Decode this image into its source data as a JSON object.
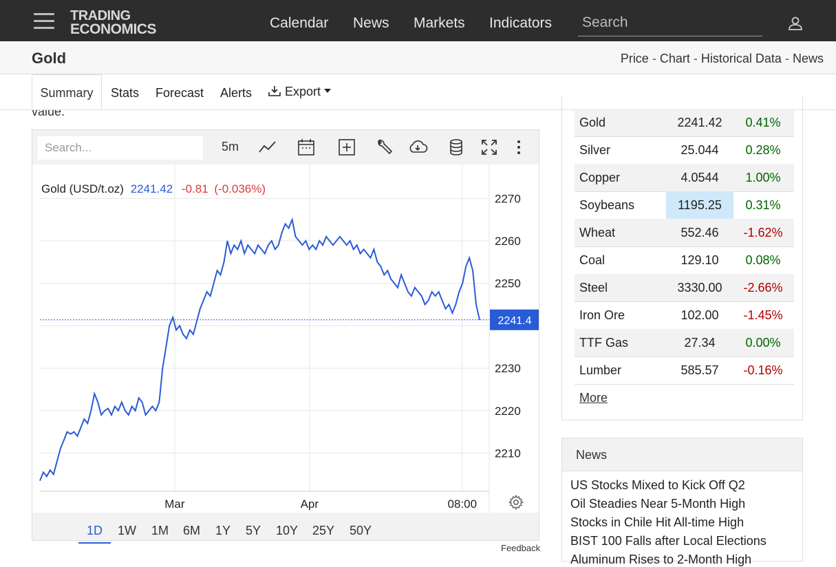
{
  "header": {
    "logo_line1": "TRADING",
    "logo_line2": "ECONOMICS",
    "nav": [
      "Calendar",
      "News",
      "Markets",
      "Indicators"
    ],
    "search_placeholder": "Search",
    "icons": {
      "menu": "hamburger-menu-icon",
      "user": "user-icon"
    }
  },
  "subheader": {
    "title": "Gold",
    "links": [
      "Price",
      "Chart",
      "Historical Data",
      "News"
    ],
    "separator": "-"
  },
  "tabs": [
    "Summary",
    "Stats",
    "Forecast",
    "Alerts",
    "Export"
  ],
  "tabs_active": "Summary",
  "partial_text": "value.",
  "chart_toolbar": {
    "search_placeholder": "Search...",
    "interval": "5m",
    "icons": [
      "line-chart-icon",
      "calendar-icon",
      "add-indicator-icon",
      "wrench-icon",
      "cloud-download-icon",
      "database-icon",
      "fullscreen-icon",
      "more-vertical-icon"
    ]
  },
  "chart_data": {
    "type": "line",
    "title": "Gold (USD/t.oz)",
    "last_value": "2241.42",
    "change": "-0.81",
    "change_pct": "(-0.036%)",
    "current_label": "2241.4",
    "line_color": "#2a5bd7",
    "y_ticks": [
      2210,
      2220,
      2230,
      2250,
      2260,
      2270
    ],
    "ylim": [
      2201,
      2278
    ],
    "x_ticks": [
      "Mar",
      "Apr",
      "08:00"
    ],
    "series": [
      {
        "values": [
          2203.5,
          2205.5,
          2204.5,
          2206,
          2205,
          2208,
          2211,
          2213,
          2215,
          2214.5,
          2215,
          2214,
          2216,
          2218,
          2217,
          2220,
          2224,
          2222,
          2219,
          2220,
          2220.5,
          2219,
          2221,
          2220,
          2222,
          2220,
          2219,
          2221,
          2220,
          2223,
          2222,
          2219,
          2220,
          2221,
          2220,
          2222,
          2230,
          2235,
          2240,
          2242,
          2239,
          2240,
          2238,
          2237,
          2239,
          2238,
          2241,
          2244,
          2246,
          2248,
          2247,
          2250,
          2253,
          2252,
          2255,
          2260,
          2257,
          2259,
          2258,
          2260,
          2257,
          2259,
          2258,
          2257,
          2259,
          2258,
          2257,
          2259,
          2260,
          2258,
          2259,
          2262,
          2264,
          2263,
          2265,
          2261,
          2260,
          2259,
          2260,
          2258,
          2259,
          2258,
          2260,
          2259,
          2261,
          2260,
          2259,
          2260,
          2261,
          2260,
          2259,
          2260,
          2258,
          2259,
          2257,
          2258,
          2257,
          2256,
          2258,
          2255,
          2254,
          2252,
          2253,
          2251,
          2250,
          2249,
          2252,
          2250,
          2248,
          2247,
          2249,
          2248,
          2247,
          2245,
          2246,
          2248,
          2247,
          2248,
          2246,
          2244,
          2245,
          2243,
          2245,
          2248,
          2250,
          2254,
          2256,
          2253,
          2245,
          2241.4
        ]
      }
    ]
  },
  "range_buttons": [
    "1D",
    "1W",
    "1M",
    "6M",
    "1Y",
    "5Y",
    "10Y",
    "25Y",
    "50Y"
  ],
  "range_active": "1D",
  "feedback": "Feedback",
  "commodities": [
    {
      "name": "Gold",
      "price": "2241.42",
      "change": "0.41%",
      "dir": "pos"
    },
    {
      "name": "Silver",
      "price": "25.044",
      "change": "0.28%",
      "dir": "pos"
    },
    {
      "name": "Copper",
      "price": "4.0544",
      "change": "1.00%",
      "dir": "pos"
    },
    {
      "name": "Soybeans",
      "price": "1195.25",
      "change": "0.31%",
      "dir": "pos",
      "highlight": true
    },
    {
      "name": "Wheat",
      "price": "552.46",
      "change": "-1.62%",
      "dir": "neg"
    },
    {
      "name": "Coal",
      "price": "129.10",
      "change": "0.08%",
      "dir": "pos"
    },
    {
      "name": "Steel",
      "price": "3330.00",
      "change": "-2.66%",
      "dir": "neg"
    },
    {
      "name": "Iron Ore",
      "price": "102.00",
      "change": "-1.45%",
      "dir": "neg"
    },
    {
      "name": "TTF Gas",
      "price": "27.34",
      "change": "0.00%",
      "dir": "pos"
    },
    {
      "name": "Lumber",
      "price": "585.57",
      "change": "-0.16%",
      "dir": "neg"
    }
  ],
  "more_label": "More",
  "news": {
    "title": "News",
    "items": [
      "US Stocks Mixed to Kick Off Q2",
      "Oil Steadies Near 5-Month High",
      "Stocks in Chile Hit All-time High",
      "BIST 100 Falls after Local Elections",
      "Aluminum Rises to 2-Month High"
    ]
  }
}
